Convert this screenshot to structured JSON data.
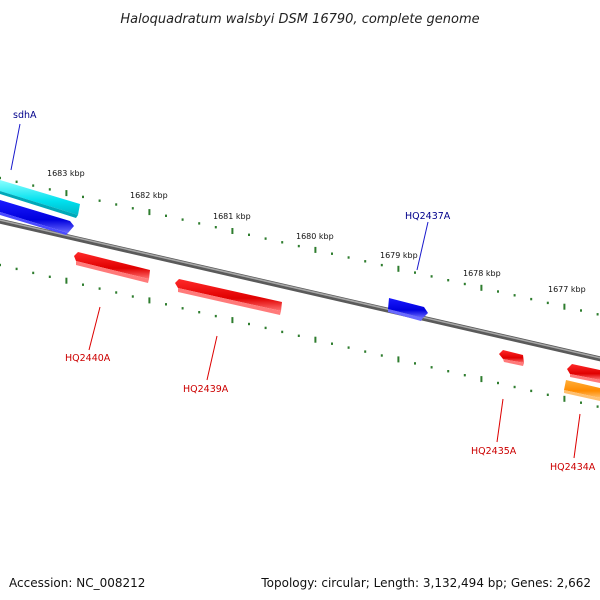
{
  "title": "Haloquadratum walsbyi DSM 16790, complete genome",
  "ticks": [
    {
      "label": "1683 kbp"
    },
    {
      "label": "1682 kbp"
    },
    {
      "label": "1681 kbp"
    },
    {
      "label": "1680 kbp"
    },
    {
      "label": "1679 kbp"
    },
    {
      "label": "1678 kbp"
    },
    {
      "label": "1677 kbp"
    }
  ],
  "genes": [
    {
      "name": "sdhA",
      "color": "#00008b"
    },
    {
      "name": "HQ2437A",
      "color": "#00008b"
    },
    {
      "name": "HQ2440A",
      "color": "#cc0000"
    },
    {
      "name": "HQ2439A",
      "color": "#cc0000"
    },
    {
      "name": "HQ2435A",
      "color": "#cc0000"
    },
    {
      "name": "HQ2434A",
      "color": "#cc0000"
    }
  ],
  "feature_colors": {
    "backbone": "#7a7a7a",
    "tick_marks": "#2e7d2e",
    "cyan_feature": "#00e5ee",
    "blue_feature": "#0000ee",
    "red_feature": "#ee0000",
    "orange_feature": "#ff8c00"
  },
  "footer": {
    "accession": "Accession: NC_008212",
    "topology": "Topology: circular; Length: 3,132,494 bp; Genes: 2,662"
  }
}
